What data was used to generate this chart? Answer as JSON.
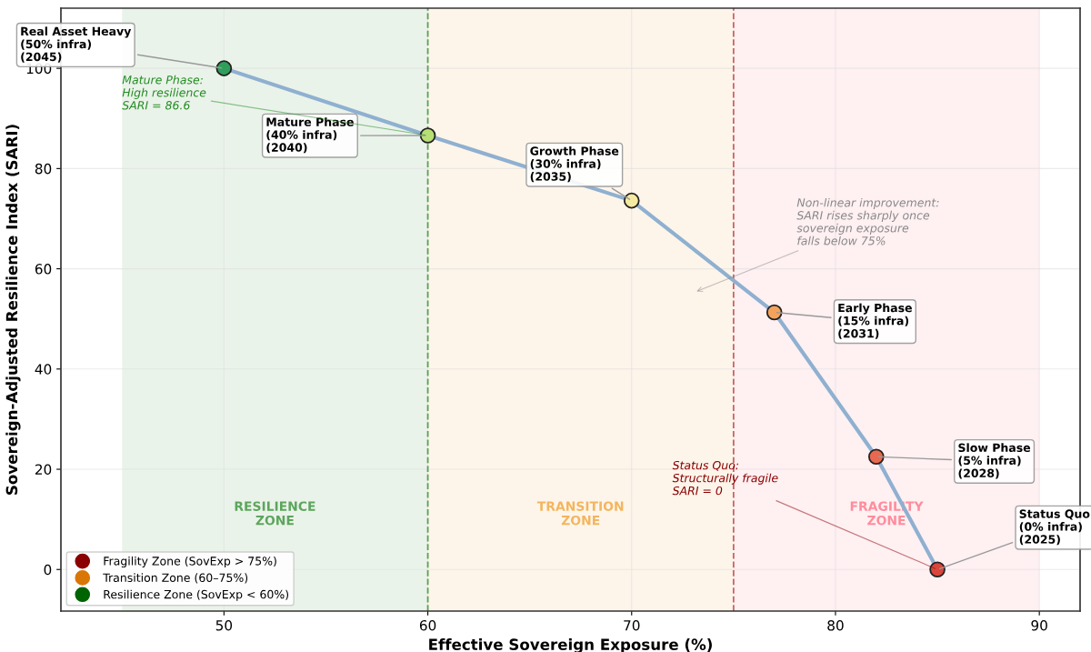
{
  "chart_data": {
    "type": "line",
    "xlabel": "Effective Sovereign Exposure (%)",
    "ylabel": "Sovereign-Adjusted Resilience Index (SARI)",
    "x": [
      85,
      82,
      77,
      70,
      60,
      50
    ],
    "series": [
      {
        "color": "#8fb0d0",
        "colors": [
          "#d9463b",
          "#e8694f",
          "#f5a35c",
          "#f6e9a0",
          "#b8df74",
          "#2e9e5a"
        ],
        "values": [
          0,
          22.5,
          51.3,
          73.6,
          86.6,
          100
        ]
      },
      {
        "type": "scatter",
        "name": "Fragility Zone (SovExp > 75%)",
        "color": "#8b0000",
        "values": [
          null,
          null,
          null,
          null,
          null,
          null
        ]
      },
      {
        "type": "scatter",
        "name": "Transition Zone (60–75%)",
        "color": "#d97706",
        "values": [
          null,
          null,
          null,
          null,
          null,
          null
        ]
      },
      {
        "type": "scatter",
        "name": "Resilience Zone (SovExp < 60%)",
        "color": "#006400",
        "values": [
          null,
          null,
          null,
          null,
          null,
          null
        ]
      }
    ],
    "xlim": [
      42,
      92
    ],
    "ylim": [
      -8.3,
      112
    ],
    "xticks": [
      50,
      60,
      70,
      80,
      90
    ],
    "yticks": [
      0,
      20,
      40,
      60,
      80,
      100
    ],
    "bands": [
      {
        "axis": "x",
        "from": 45,
        "to": 60,
        "label": "RESILIENCE\nZONE",
        "color": "#2e8b2e"
      },
      {
        "axis": "x",
        "from": 60,
        "to": 75,
        "label": "TRANSITION\nZONE",
        "color": "#f0a030"
      },
      {
        "axis": "x",
        "from": 75,
        "to": 90,
        "label": "FRAGILITY\nZONE",
        "color": "#ff6b7f"
      }
    ],
    "ref_lines": [
      {
        "axis": "x",
        "value": 60,
        "color": "#5aa05a",
        "line_style": "dashed"
      },
      {
        "axis": "x",
        "value": 75,
        "color": "#c86464",
        "line_style": "dashed"
      }
    ],
    "annotations": [
      {
        "text": "Status Quo\n(0% infra)\n(2025)",
        "x": 85,
        "y": 0
      },
      {
        "text": "Slow Phase\n(5% infra)\n(2028)",
        "x": 82,
        "y": 22.5
      },
      {
        "text": "Early Phase\n(15% infra)\n(2031)",
        "x": 77,
        "y": 51.3
      },
      {
        "text": "Growth Phase\n(30% infra)\n(2035)",
        "x": 70,
        "y": 73.6
      },
      {
        "text": "Mature Phase\n(40% infra)\n(2040)",
        "x": 60,
        "y": 86.6
      },
      {
        "text": "Real Asset Heavy\n(50% infra)\n(2045)",
        "x": 50,
        "y": 100
      },
      {
        "text": "Mature Phase:\nHigh resilience\nSARI = 86.6",
        "x": 60,
        "y": 86.6
      },
      "Non-linear improvement:\nSARI rises sharply once\nsovereign exposure\nfalls below 75%",
      {
        "text": "Status Quo:\nStructurally fragile\nSARI = 0",
        "x": 85,
        "y": 0
      }
    ],
    "grid": true,
    "legend": "bottom left",
    "marker": "circle"
  }
}
